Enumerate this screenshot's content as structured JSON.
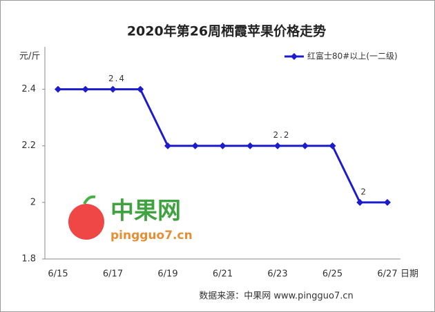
{
  "chart_data": {
    "type": "line",
    "title": "2020年第26周栖霞苹果价格走势",
    "y_label": "元/斤",
    "x_label": "日期",
    "categories": [
      "6/15",
      null,
      "6/17",
      null,
      "6/19",
      null,
      "6/21",
      null,
      "6/23",
      null,
      "6/25",
      null,
      "6/27"
    ],
    "series": [
      {
        "name": "红富士80#以上(一二级)",
        "color": "#1c1ccc",
        "values": [
          2.4,
          2.4,
          2.4,
          2.4,
          2.2,
          2.2,
          2.2,
          2.2,
          2.2,
          2.2,
          2.2,
          2,
          2
        ],
        "value_labels": [
          null,
          null,
          "2.4",
          null,
          null,
          null,
          null,
          null,
          "2.2",
          null,
          null,
          "2",
          null
        ]
      }
    ],
    "ylim": [
      1.8,
      2.55
    ],
    "yticks": [
      1.8,
      2,
      2.2,
      2.4
    ],
    "legend": "top-right",
    "watermark": {
      "name": "中果网",
      "site": "pingguo7.cn"
    },
    "source": "数据来源：中果网 www.pingguo7.cn"
  }
}
